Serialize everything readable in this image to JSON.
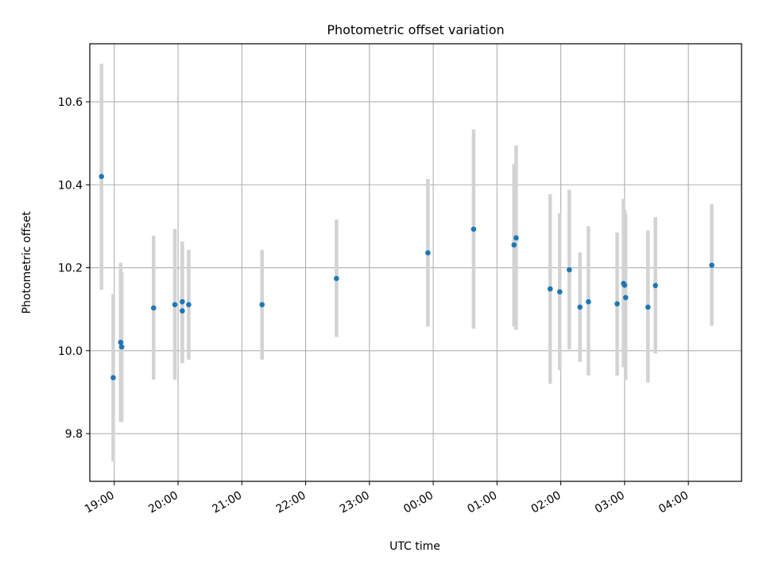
{
  "chart_data": {
    "type": "scatter",
    "title": "Photometric offset variation",
    "xlabel": "UTC time",
    "ylabel": "Photometric offset",
    "x_unit": "UTC time (HH:MM), 19:00 to 04:00 across midnight",
    "xlim": [
      "18:37",
      "04:50"
    ],
    "ylim": [
      9.685,
      10.74
    ],
    "xticks": [
      "19:00",
      "20:00",
      "21:00",
      "22:00",
      "23:00",
      "00:00",
      "01:00",
      "02:00",
      "03:00",
      "04:00"
    ],
    "yticks": [
      9.8,
      10.0,
      10.2,
      10.4,
      10.6
    ],
    "yticklabels": [
      "9.8",
      "10.0",
      "10.2",
      "10.4",
      "10.6"
    ],
    "grid": true,
    "legend": "none",
    "colors": {
      "point": "#1f77b4",
      "errorbar": "#d3d3d3",
      "grid": "#b0b0b0"
    },
    "points": [
      {
        "x": "18:48",
        "y": 10.42,
        "ylow": 10.147,
        "yhigh": 10.692
      },
      {
        "x": "18:59",
        "y": 9.935,
        "ylow": 9.733,
        "yhigh": 10.137
      },
      {
        "x": "19:06",
        "y": 10.02,
        "ylow": 9.828,
        "yhigh": 10.212
      },
      {
        "x": "19:07",
        "y": 10.009,
        "ylow": 9.828,
        "yhigh": 10.19
      },
      {
        "x": "19:37",
        "y": 10.103,
        "ylow": 9.93,
        "yhigh": 10.277
      },
      {
        "x": "19:57",
        "y": 10.111,
        "ylow": 9.93,
        "yhigh": 10.293
      },
      {
        "x": "20:04",
        "y": 10.118,
        "ylow": 9.97,
        "yhigh": 10.263
      },
      {
        "x": "20:04",
        "y": 10.096,
        "ylow": 9.97,
        "yhigh": 10.22
      },
      {
        "x": "20:10",
        "y": 10.111,
        "ylow": 9.978,
        "yhigh": 10.243
      },
      {
        "x": "21:19",
        "y": 10.111,
        "ylow": 9.978,
        "yhigh": 10.243
      },
      {
        "x": "22:29",
        "y": 10.174,
        "ylow": 10.033,
        "yhigh": 10.316
      },
      {
        "x": "23:55",
        "y": 10.236,
        "ylow": 10.058,
        "yhigh": 10.414
      },
      {
        "x": "00:38",
        "y": 10.293,
        "ylow": 10.053,
        "yhigh": 10.533
      },
      {
        "x": "01:16",
        "y": 10.255,
        "ylow": 10.058,
        "yhigh": 10.45
      },
      {
        "x": "01:18",
        "y": 10.272,
        "ylow": 10.05,
        "yhigh": 10.495
      },
      {
        "x": "01:50",
        "y": 10.149,
        "ylow": 9.92,
        "yhigh": 10.377
      },
      {
        "x": "01:59",
        "y": 10.142,
        "ylow": 9.953,
        "yhigh": 10.332
      },
      {
        "x": "02:08",
        "y": 10.195,
        "ylow": 10.003,
        "yhigh": 10.388
      },
      {
        "x": "02:18",
        "y": 10.105,
        "ylow": 9.973,
        "yhigh": 10.237
      },
      {
        "x": "02:26",
        "y": 10.118,
        "ylow": 9.94,
        "yhigh": 10.3
      },
      {
        "x": "02:53",
        "y": 10.113,
        "ylow": 9.94,
        "yhigh": 10.285
      },
      {
        "x": "02:59",
        "y": 10.162,
        "ylow": 9.96,
        "yhigh": 10.366
      },
      {
        "x": "03:00",
        "y": 10.158,
        "ylow": 9.988,
        "yhigh": 10.34
      },
      {
        "x": "03:01",
        "y": 10.128,
        "ylow": 9.93,
        "yhigh": 10.33
      },
      {
        "x": "03:22",
        "y": 10.105,
        "ylow": 9.923,
        "yhigh": 10.29
      },
      {
        "x": "03:29",
        "y": 10.157,
        "ylow": 9.993,
        "yhigh": 10.322
      },
      {
        "x": "04:22",
        "y": 10.206,
        "ylow": 10.06,
        "yhigh": 10.353
      }
    ]
  }
}
